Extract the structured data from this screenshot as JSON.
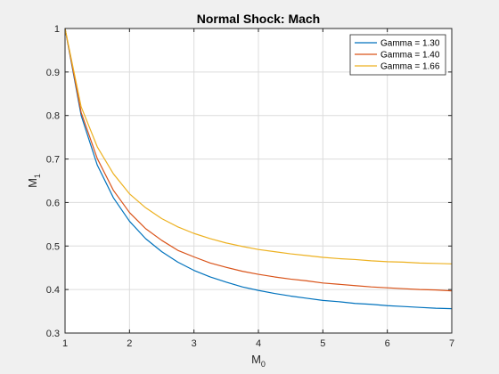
{
  "colors": {
    "figure_background": "#f0f0f0",
    "axes_background": "#ffffff",
    "grid": "#dcdcdc",
    "axis": "#262626"
  },
  "chart_data": {
    "type": "line",
    "title": "Normal Shock: Mach",
    "xlabel_base": "M",
    "xlabel_sub": "0",
    "ylabel_base": "M",
    "ylabel_sub": "1",
    "xlim": [
      1,
      7
    ],
    "ylim": [
      0.3,
      1
    ],
    "xticks": [
      1,
      2,
      3,
      4,
      5,
      6,
      7
    ],
    "yticks": [
      0.3,
      0.4,
      0.5,
      0.6,
      0.7,
      0.8,
      0.9,
      1
    ],
    "x_tick_labels": [
      "1",
      "2",
      "3",
      "4",
      "5",
      "6",
      "7"
    ],
    "y_tick_labels": [
      "0.3",
      "0.4",
      "0.5",
      "0.6",
      "0.7",
      "0.8",
      "0.9",
      "1"
    ],
    "grid": true,
    "legend_position": "top-right",
    "x": [
      1.0,
      1.25,
      1.5,
      1.75,
      2.0,
      2.25,
      2.5,
      2.75,
      3.0,
      3.25,
      3.5,
      3.75,
      4.0,
      4.25,
      4.5,
      4.75,
      5.0,
      5.25,
      5.5,
      5.75,
      6.0,
      6.25,
      6.5,
      6.75,
      7.0
    ],
    "series": [
      {
        "name": "Gamma = 1.30",
        "color": "#0072bd",
        "values": [
          1.0,
          0.8,
          0.686,
          0.611,
          0.557,
          0.517,
          0.487,
          0.463,
          0.444,
          0.429,
          0.417,
          0.406,
          0.398,
          0.391,
          0.385,
          0.38,
          0.375,
          0.372,
          0.368,
          0.366,
          0.363,
          0.361,
          0.359,
          0.357,
          0.356
        ]
      },
      {
        "name": "Gamma = 1.40",
        "color": "#d95319",
        "values": [
          1.0,
          0.807,
          0.701,
          0.628,
          0.577,
          0.54,
          0.513,
          0.49,
          0.475,
          0.461,
          0.451,
          0.442,
          0.435,
          0.429,
          0.424,
          0.42,
          0.415,
          0.412,
          0.409,
          0.406,
          0.404,
          0.402,
          0.4,
          0.399,
          0.397
        ]
      },
      {
        "name": "Gamma = 1.66",
        "color": "#edb120",
        "values": [
          1.0,
          0.82,
          0.728,
          0.666,
          0.62,
          0.588,
          0.563,
          0.544,
          0.529,
          0.517,
          0.507,
          0.499,
          0.492,
          0.487,
          0.482,
          0.478,
          0.474,
          0.471,
          0.469,
          0.466,
          0.464,
          0.463,
          0.461,
          0.46,
          0.459
        ]
      }
    ]
  }
}
